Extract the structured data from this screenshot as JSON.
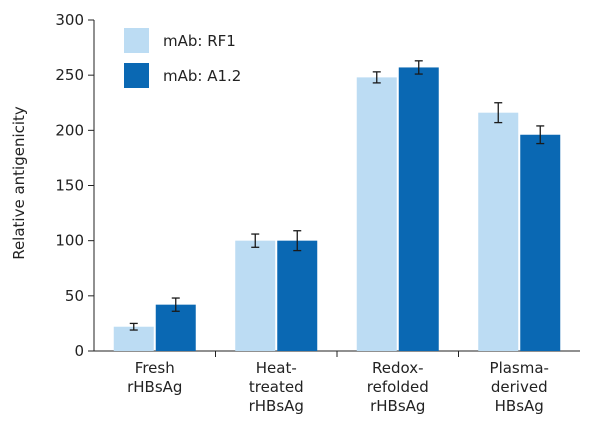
{
  "chart_data": {
    "type": "bar",
    "ylabel": "Relative antigenicity",
    "ylim": [
      0,
      300
    ],
    "yticks": [
      0,
      50,
      100,
      150,
      200,
      250,
      300
    ],
    "categories": [
      [
        "Fresh",
        "rHBsAg"
      ],
      [
        "Heat-",
        "treated",
        "rHBsAg"
      ],
      [
        "Redox-",
        "refolded",
        "rHBsAg"
      ],
      [
        "Plasma-",
        "derived",
        "HBsAg"
      ]
    ],
    "series": [
      {
        "name": "mAb: RF1",
        "color": "#bcdcf3",
        "values": [
          22,
          100,
          248,
          216
        ],
        "errors": [
          3,
          6,
          5,
          9
        ]
      },
      {
        "name": "mAb: A1.2",
        "color": "#0a68b3",
        "values": [
          42,
          100,
          257,
          196
        ],
        "errors": [
          6,
          9,
          6,
          8
        ]
      }
    ],
    "legend": "top-left",
    "grid": false
  }
}
